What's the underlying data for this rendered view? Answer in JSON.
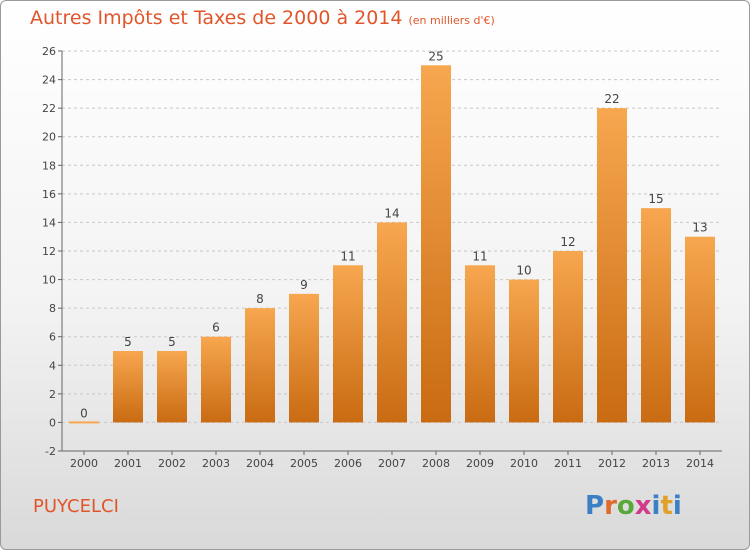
{
  "header": {
    "title": "Autres Impôts et Taxes de 2000 à 2014",
    "subtitle": "(en milliers d'€)"
  },
  "footer": {
    "location": "PUYCELCI",
    "logo_letters": [
      "P",
      "r",
      "o",
      "x",
      "i",
      "t",
      "i"
    ],
    "logo_colors": [
      "#3b7fc4",
      "#e06a2a",
      "#5aa83c",
      "#d23a8a",
      "#3b7fc4",
      "#e0a02a",
      "#3b7fc4"
    ]
  },
  "chart_data": {
    "type": "bar",
    "title": "Autres Impôts et Taxes de 2000 à 2014",
    "subtitle": "(en milliers d'€)",
    "categories": [
      "2000",
      "2001",
      "2002",
      "2003",
      "2004",
      "2005",
      "2006",
      "2007",
      "2008",
      "2009",
      "2010",
      "2011",
      "2012",
      "2013",
      "2014"
    ],
    "values": [
      0,
      5,
      5,
      6,
      8,
      9,
      11,
      14,
      25,
      11,
      10,
      12,
      22,
      15,
      13
    ],
    "ylim": [
      -2,
      26
    ],
    "yticks": [
      -2,
      0,
      2,
      4,
      6,
      8,
      10,
      12,
      14,
      16,
      18,
      20,
      22,
      24,
      26
    ],
    "grid": "horizontal dashed",
    "bar_color_light": "#f7a74f",
    "bar_color_dark": "#c96b12"
  }
}
